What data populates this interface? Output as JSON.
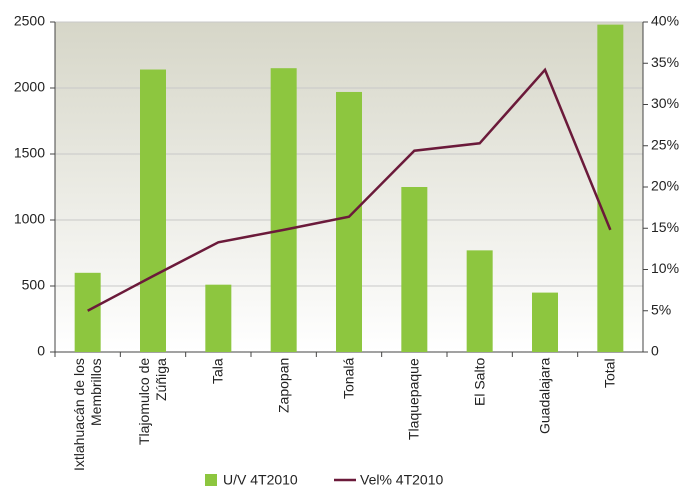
{
  "chart_data": {
    "type": "bar_line",
    "categories": [
      "Ixtlahuacán de los Membrillos",
      "Tlajomulco de Zúñiga",
      "Tala",
      "Zapopan",
      "Tonalá",
      "Tlaquepaque",
      "El Salto",
      "Guadalajara",
      "Total"
    ],
    "series": [
      {
        "name": "U/V 4T2010",
        "type": "bar",
        "color": "#8dc63f",
        "values": [
          600,
          2140,
          510,
          2150,
          1970,
          1250,
          770,
          450,
          2480
        ]
      },
      {
        "name": "Vel% 4T2010",
        "type": "line",
        "axis": "y2",
        "color": "#6b1a3a",
        "values": [
          5.0,
          9.2,
          13.3,
          14.8,
          16.4,
          24.4,
          25.3,
          34.2,
          14.8
        ]
      }
    ],
    "ylim": [
      0,
      2500
    ],
    "yticks": [
      0,
      500,
      1000,
      1500,
      2000,
      2500
    ],
    "y2lim": [
      0,
      40
    ],
    "y2ticks": [
      0,
      {
        "value": 5,
        "label": "5%"
      },
      {
        "value": 10,
        "label": "10%"
      },
      {
        "value": 15,
        "label": "15%"
      },
      {
        "value": 20,
        "label": "20%"
      },
      {
        "value": 25,
        "label": "25%"
      },
      {
        "value": 30,
        "label": "30%"
      },
      {
        "value": 35,
        "label": "35%"
      },
      {
        "value": 40,
        "label": "40%"
      }
    ],
    "grid": true,
    "legend": "bottom"
  }
}
